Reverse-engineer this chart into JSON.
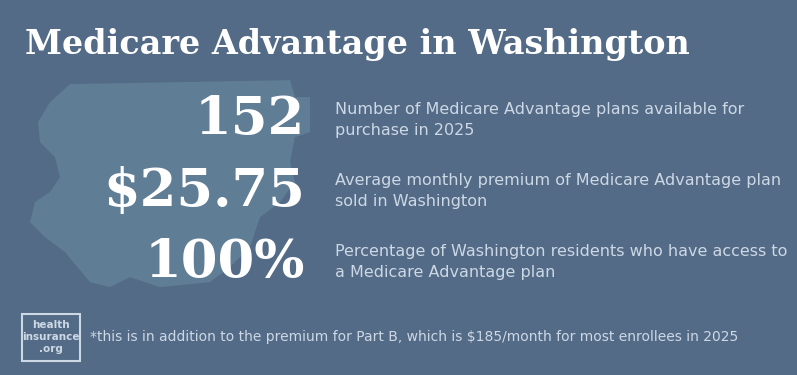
{
  "title": "Medicare Advantage in Washington",
  "title_bg": "#b85c35",
  "body_bg": "#536b86",
  "watermark_color": "#607d96",
  "title_color": "#ffffff",
  "stat_color": "#ffffff",
  "desc_color": "#cdd8e5",
  "footer_color": "#cdd8e5",
  "stats": [
    {
      "value": "152",
      "description": "Number of Medicare Advantage plans available for\npurchase in 2025"
    },
    {
      "value": "$25.75",
      "description": "Average monthly premium of Medicare Advantage plan\nsold in Washington"
    },
    {
      "value": "100%",
      "description": "Percentage of Washington residents who have access to\na Medicare Advantage plan"
    }
  ],
  "footer_text": "*this is in addition to the premium for Part B, which is $185/month for most enrollees in 2025",
  "logo_line1": "health",
  "logo_line2": "insurance",
  "logo_line3": ".org",
  "title_fontsize": 24,
  "stat_fontsize": 38,
  "desc_fontsize": 11.5,
  "footer_fontsize": 10
}
